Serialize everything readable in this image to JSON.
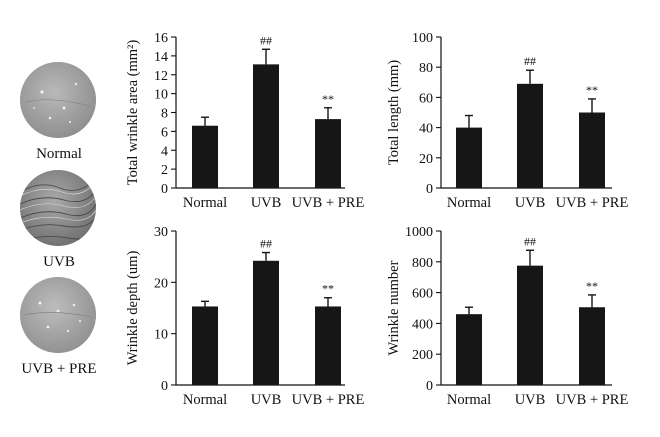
{
  "images": {
    "items": [
      {
        "label": "Normal",
        "texture": "smooth"
      },
      {
        "label": "UVB",
        "texture": "wrinkled"
      },
      {
        "label": "UVB + PRE",
        "texture": "smooth"
      }
    ]
  },
  "chart_data": [
    {
      "type": "bar",
      "categories": [
        "Normal",
        "UVB",
        "UVB + PRE"
      ],
      "values": [
        6.6,
        13.1,
        7.3
      ],
      "errors": [
        0.9,
        1.6,
        1.2
      ],
      "annotations": [
        "",
        "##",
        "**"
      ],
      "ylabel": "Total wrinkle area (mm²)",
      "ylim": [
        0,
        16
      ],
      "yticks": [
        0,
        2,
        4,
        6,
        8,
        10,
        12,
        14,
        16
      ]
    },
    {
      "type": "bar",
      "categories": [
        "Normal",
        "UVB",
        "UVB + PRE"
      ],
      "values": [
        40,
        69,
        50
      ],
      "errors": [
        8,
        9,
        9
      ],
      "annotations": [
        "",
        "##",
        "**"
      ],
      "ylabel": "Total length (mm)",
      "ylim": [
        0,
        100
      ],
      "yticks": [
        0,
        20,
        40,
        60,
        80,
        100
      ]
    },
    {
      "type": "bar",
      "categories": [
        "Normal",
        "UVB",
        "UVB + PRE"
      ],
      "values": [
        15.3,
        24.2,
        15.3
      ],
      "errors": [
        1.0,
        1.6,
        1.7
      ],
      "annotations": [
        "",
        "##",
        "**"
      ],
      "ylabel": "Wrinkle depth (um)",
      "ylim": [
        0,
        30
      ],
      "yticks": [
        0,
        10,
        20,
        30
      ]
    },
    {
      "type": "bar",
      "categories": [
        "Normal",
        "UVB",
        "UVB + PRE"
      ],
      "values": [
        460,
        775,
        505
      ],
      "errors": [
        45,
        100,
        80
      ],
      "annotations": [
        "",
        "##",
        "**"
      ],
      "ylabel": "Wrinkle number",
      "ylim": [
        0,
        1000
      ],
      "yticks": [
        0,
        200,
        400,
        600,
        800,
        1000
      ]
    }
  ]
}
